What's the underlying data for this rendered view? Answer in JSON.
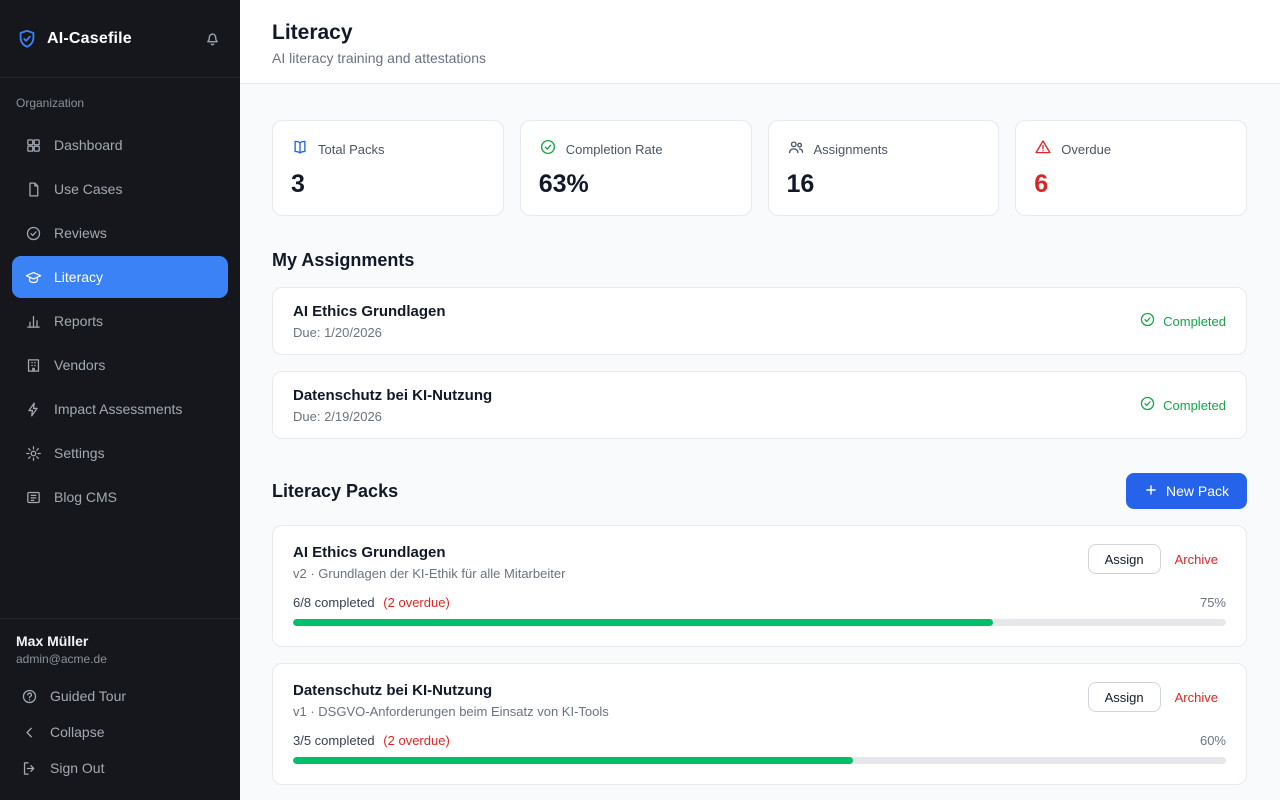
{
  "colors": {
    "sidebar_bg": "#15171c",
    "accent_blue": "#2563eb",
    "active_nav_blue": "#3b82f6",
    "success_green": "#16a34a",
    "progress_green": "#00bf6a",
    "danger_red": "#dc2626"
  },
  "sidebar": {
    "brand": "AI-Casefile",
    "section_label": "Organization",
    "items": [
      {
        "label": "Dashboard"
      },
      {
        "label": "Use Cases"
      },
      {
        "label": "Reviews"
      },
      {
        "label": "Literacy"
      },
      {
        "label": "Reports"
      },
      {
        "label": "Vendors"
      },
      {
        "label": "Impact Assessments"
      },
      {
        "label": "Settings"
      },
      {
        "label": "Blog CMS"
      }
    ],
    "user": {
      "name": "Max Müller",
      "email": "admin@acme.de"
    },
    "footer_items": [
      {
        "label": "Guided Tour"
      },
      {
        "label": "Collapse"
      },
      {
        "label": "Sign Out"
      }
    ]
  },
  "header": {
    "title": "Literacy",
    "subtitle": "AI literacy training and attestations"
  },
  "stats": [
    {
      "label": "Total Packs",
      "value": "3"
    },
    {
      "label": "Completion Rate",
      "value": "63%"
    },
    {
      "label": "Assignments",
      "value": "16"
    },
    {
      "label": "Overdue",
      "value": "6"
    }
  ],
  "assignments": {
    "heading": "My Assignments",
    "items": [
      {
        "title": "AI Ethics Grundlagen",
        "due": "Due: 1/20/2026",
        "status": "Completed"
      },
      {
        "title": "Datenschutz bei KI-Nutzung",
        "due": "Due: 2/19/2026",
        "status": "Completed"
      }
    ]
  },
  "packs": {
    "heading": "Literacy Packs",
    "new_pack_label": "New Pack",
    "assign_label": "Assign",
    "archive_label": "Archive",
    "items": [
      {
        "title": "AI Ethics Grundlagen",
        "subtitle": "v2 · Grundlagen der KI-Ethik für alle Mitarbeiter",
        "completed_text": "6/8 completed",
        "overdue_text": "(2 overdue)",
        "percent_label": "75%",
        "progress": 75
      },
      {
        "title": "Datenschutz bei KI-Nutzung",
        "subtitle": "v1 · DSGVO-Anforderungen beim Einsatz von KI-Tools",
        "completed_text": "3/5 completed",
        "overdue_text": "(2 overdue)",
        "percent_label": "60%",
        "progress": 60
      }
    ]
  }
}
